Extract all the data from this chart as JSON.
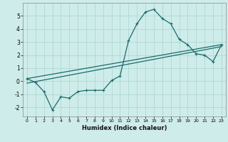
{
  "title": "",
  "xlabel": "Humidex (Indice chaleur)",
  "ylabel": "",
  "background_color": "#ceecea",
  "grid_color": "#aed8d4",
  "line_color": "#1a6b6b",
  "xlim": [
    -0.5,
    23.5
  ],
  "ylim": [
    -2.7,
    6.0
  ],
  "xticks": [
    0,
    1,
    2,
    3,
    4,
    5,
    6,
    7,
    8,
    9,
    10,
    11,
    12,
    13,
    14,
    15,
    16,
    17,
    18,
    19,
    20,
    21,
    22,
    23
  ],
  "yticks": [
    -2,
    -1,
    0,
    1,
    2,
    3,
    4,
    5
  ],
  "curve1_x": [
    0,
    1,
    2,
    3,
    4,
    5,
    6,
    7,
    8,
    9,
    10,
    11,
    12,
    13,
    14,
    15,
    16,
    17,
    18,
    19,
    20,
    21,
    22,
    23
  ],
  "curve1_y": [
    0.2,
    -0.1,
    -0.8,
    -2.2,
    -1.2,
    -1.3,
    -0.8,
    -0.7,
    -0.7,
    -0.7,
    0.05,
    0.4,
    3.1,
    4.4,
    5.3,
    5.5,
    4.8,
    4.4,
    3.2,
    2.8,
    2.1,
    2.0,
    1.5,
    2.8
  ],
  "curve2_x": [
    0,
    23
  ],
  "curve2_y": [
    0.2,
    2.8
  ],
  "curve3_x": [
    0,
    23
  ],
  "curve3_y": [
    -0.15,
    2.65
  ],
  "marker": "+",
  "markersize": 3.5,
  "linewidth": 0.9
}
